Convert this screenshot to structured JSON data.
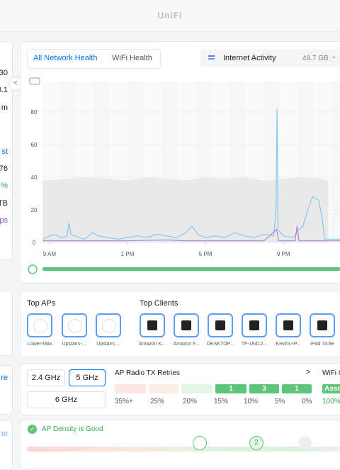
{
  "header": {
    "title": "UniFi"
  },
  "sidebar": {
    "fragments": [
      "30",
      "0.1",
      "m",
      "st",
      "76",
      "%",
      "TB",
      "ps",
      "re",
      "te"
    ]
  },
  "health": {
    "tabs": [
      "All Network Health",
      "WiFi Health"
    ],
    "dropdown": "Internet Activity",
    "total": "49.7 GB"
  },
  "chart_data": {
    "type": "line",
    "xlim": [
      -0.36,
      14.9
    ],
    "ylim": [
      0,
      98.7
    ],
    "xticks": [
      {
        "value": 0,
        "label": "9 AM"
      },
      {
        "value": 4,
        "label": "1 PM"
      },
      {
        "value": 8,
        "label": "5 PM"
      },
      {
        "value": 12,
        "label": "9 PM"
      }
    ],
    "yticks": [
      0,
      20,
      40,
      60,
      80
    ],
    "series": [
      {
        "color": "#e9e9ea",
        "x": [
          -0.35,
          1,
          2,
          3,
          4,
          5,
          6,
          7,
          8,
          9,
          10,
          11,
          12,
          13,
          14,
          14.3
        ],
        "values": [
          38,
          39,
          40,
          39,
          38,
          40,
          39,
          38,
          40,
          39,
          40,
          38,
          39,
          40,
          39,
          38
        ]
      },
      {
        "color": "#82cbef",
        "x": [
          -0.35,
          0,
          0.3,
          0.6,
          0.9,
          1,
          1.1,
          1.5,
          1.8,
          2.2,
          2.5,
          3,
          3.5,
          4,
          4.5,
          5,
          5.5,
          6,
          6.5,
          7,
          7.3,
          7.6,
          8,
          8.5,
          9,
          9.5,
          10,
          10.5,
          11,
          11.5,
          11.62,
          11.67,
          11.72,
          12,
          12.5,
          12.8,
          13,
          13.3,
          13.5,
          13.8,
          14,
          14.1,
          14.5,
          14.9
        ],
        "values": [
          2,
          4,
          5,
          3,
          4,
          12,
          5,
          3,
          2,
          6,
          4,
          3,
          2,
          3,
          4,
          3,
          5,
          4,
          3,
          6,
          10,
          5,
          3,
          4,
          3,
          6,
          4,
          3,
          5,
          4,
          20,
          82,
          8,
          4,
          3,
          8,
          10,
          22,
          28,
          26,
          14,
          2,
          2,
          2
        ]
      },
      {
        "color": "#b580e0",
        "x": [
          -0.35,
          2,
          4,
          6,
          7,
          9,
          11,
          11.65,
          11.75,
          12.6,
          12.7,
          12.8,
          14,
          14.9
        ],
        "values": [
          1,
          1,
          1,
          1.5,
          1,
          1,
          1,
          8,
          1,
          1,
          10,
          1,
          1,
          1
        ]
      }
    ]
  },
  "top": {
    "aps_title": "Top APs",
    "clients_title": "Top Clients",
    "aps": [
      "Lower-Max",
      "Upstairs-...",
      "Upstairs ..."
    ],
    "clients": [
      "Amazon K...",
      "Amazon F...",
      "DESKTOP...",
      "TF-19412...",
      "Kevins-IP...",
      "iPad 7a:8e"
    ]
  },
  "radio": {
    "bands": [
      "2.4 GHz",
      "5 GHz",
      "6 GHz"
    ],
    "title": "AP Radio TX Retries",
    "more": ">",
    "wifi": "WiFi C",
    "counts": [
      1,
      3,
      1
    ],
    "assoc": "Asso",
    "scale": [
      "35%+",
      "25%",
      "20%",
      "15%",
      "10%",
      "5%",
      "0%",
      "100%"
    ]
  },
  "density": {
    "status": "AP Density is Good",
    "marker": "2"
  }
}
